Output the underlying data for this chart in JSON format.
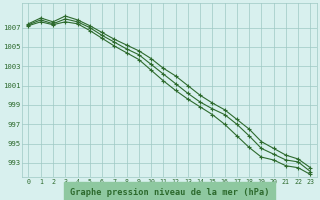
{
  "title": "Graphe pression niveau de la mer (hPa)",
  "x_labels": [
    "0",
    "1",
    "2",
    "3",
    "4",
    "5",
    "6",
    "7",
    "8",
    "9",
    "10",
    "11",
    "12",
    "13",
    "14",
    "15",
    "16",
    "17",
    "18",
    "19",
    "20",
    "21",
    "22",
    "23"
  ],
  "x_values": [
    0,
    1,
    2,
    3,
    4,
    5,
    6,
    7,
    8,
    9,
    10,
    11,
    12,
    13,
    14,
    15,
    16,
    17,
    18,
    19,
    20,
    21,
    22,
    23
  ],
  "line1": [
    1007.4,
    1008.0,
    1007.6,
    1008.2,
    1007.8,
    1007.2,
    1006.5,
    1005.8,
    1005.2,
    1004.6,
    1003.8,
    1002.8,
    1002.0,
    1001.0,
    1000.0,
    999.2,
    998.5,
    997.5,
    996.5,
    995.2,
    994.5,
    993.8,
    993.4,
    992.5
  ],
  "line2": [
    1007.3,
    1007.8,
    1007.4,
    1007.9,
    1007.6,
    1007.0,
    1006.2,
    1005.5,
    1004.8,
    1004.2,
    1003.2,
    1002.2,
    1001.2,
    1000.2,
    999.3,
    998.6,
    998.0,
    997.0,
    995.8,
    994.5,
    993.9,
    993.3,
    993.1,
    992.1
  ],
  "line3": [
    1007.2,
    1007.6,
    1007.3,
    1007.6,
    1007.4,
    1006.7,
    1005.9,
    1005.1,
    1004.4,
    1003.7,
    1002.6,
    1001.5,
    1000.5,
    999.6,
    998.8,
    998.0,
    997.0,
    995.8,
    994.6,
    993.6,
    993.3,
    992.7,
    992.5,
    991.8
  ],
  "ylim": [
    991.5,
    1009.5
  ],
  "yticks": [
    993,
    995,
    997,
    999,
    1001,
    1003,
    1005,
    1007
  ],
  "line_color": "#2d6a2d",
  "bg_color": "#d8f0ee",
  "grid_color": "#9ec8c4",
  "title_color": "#2d6a2d",
  "title_bg": "#8ec8a0"
}
